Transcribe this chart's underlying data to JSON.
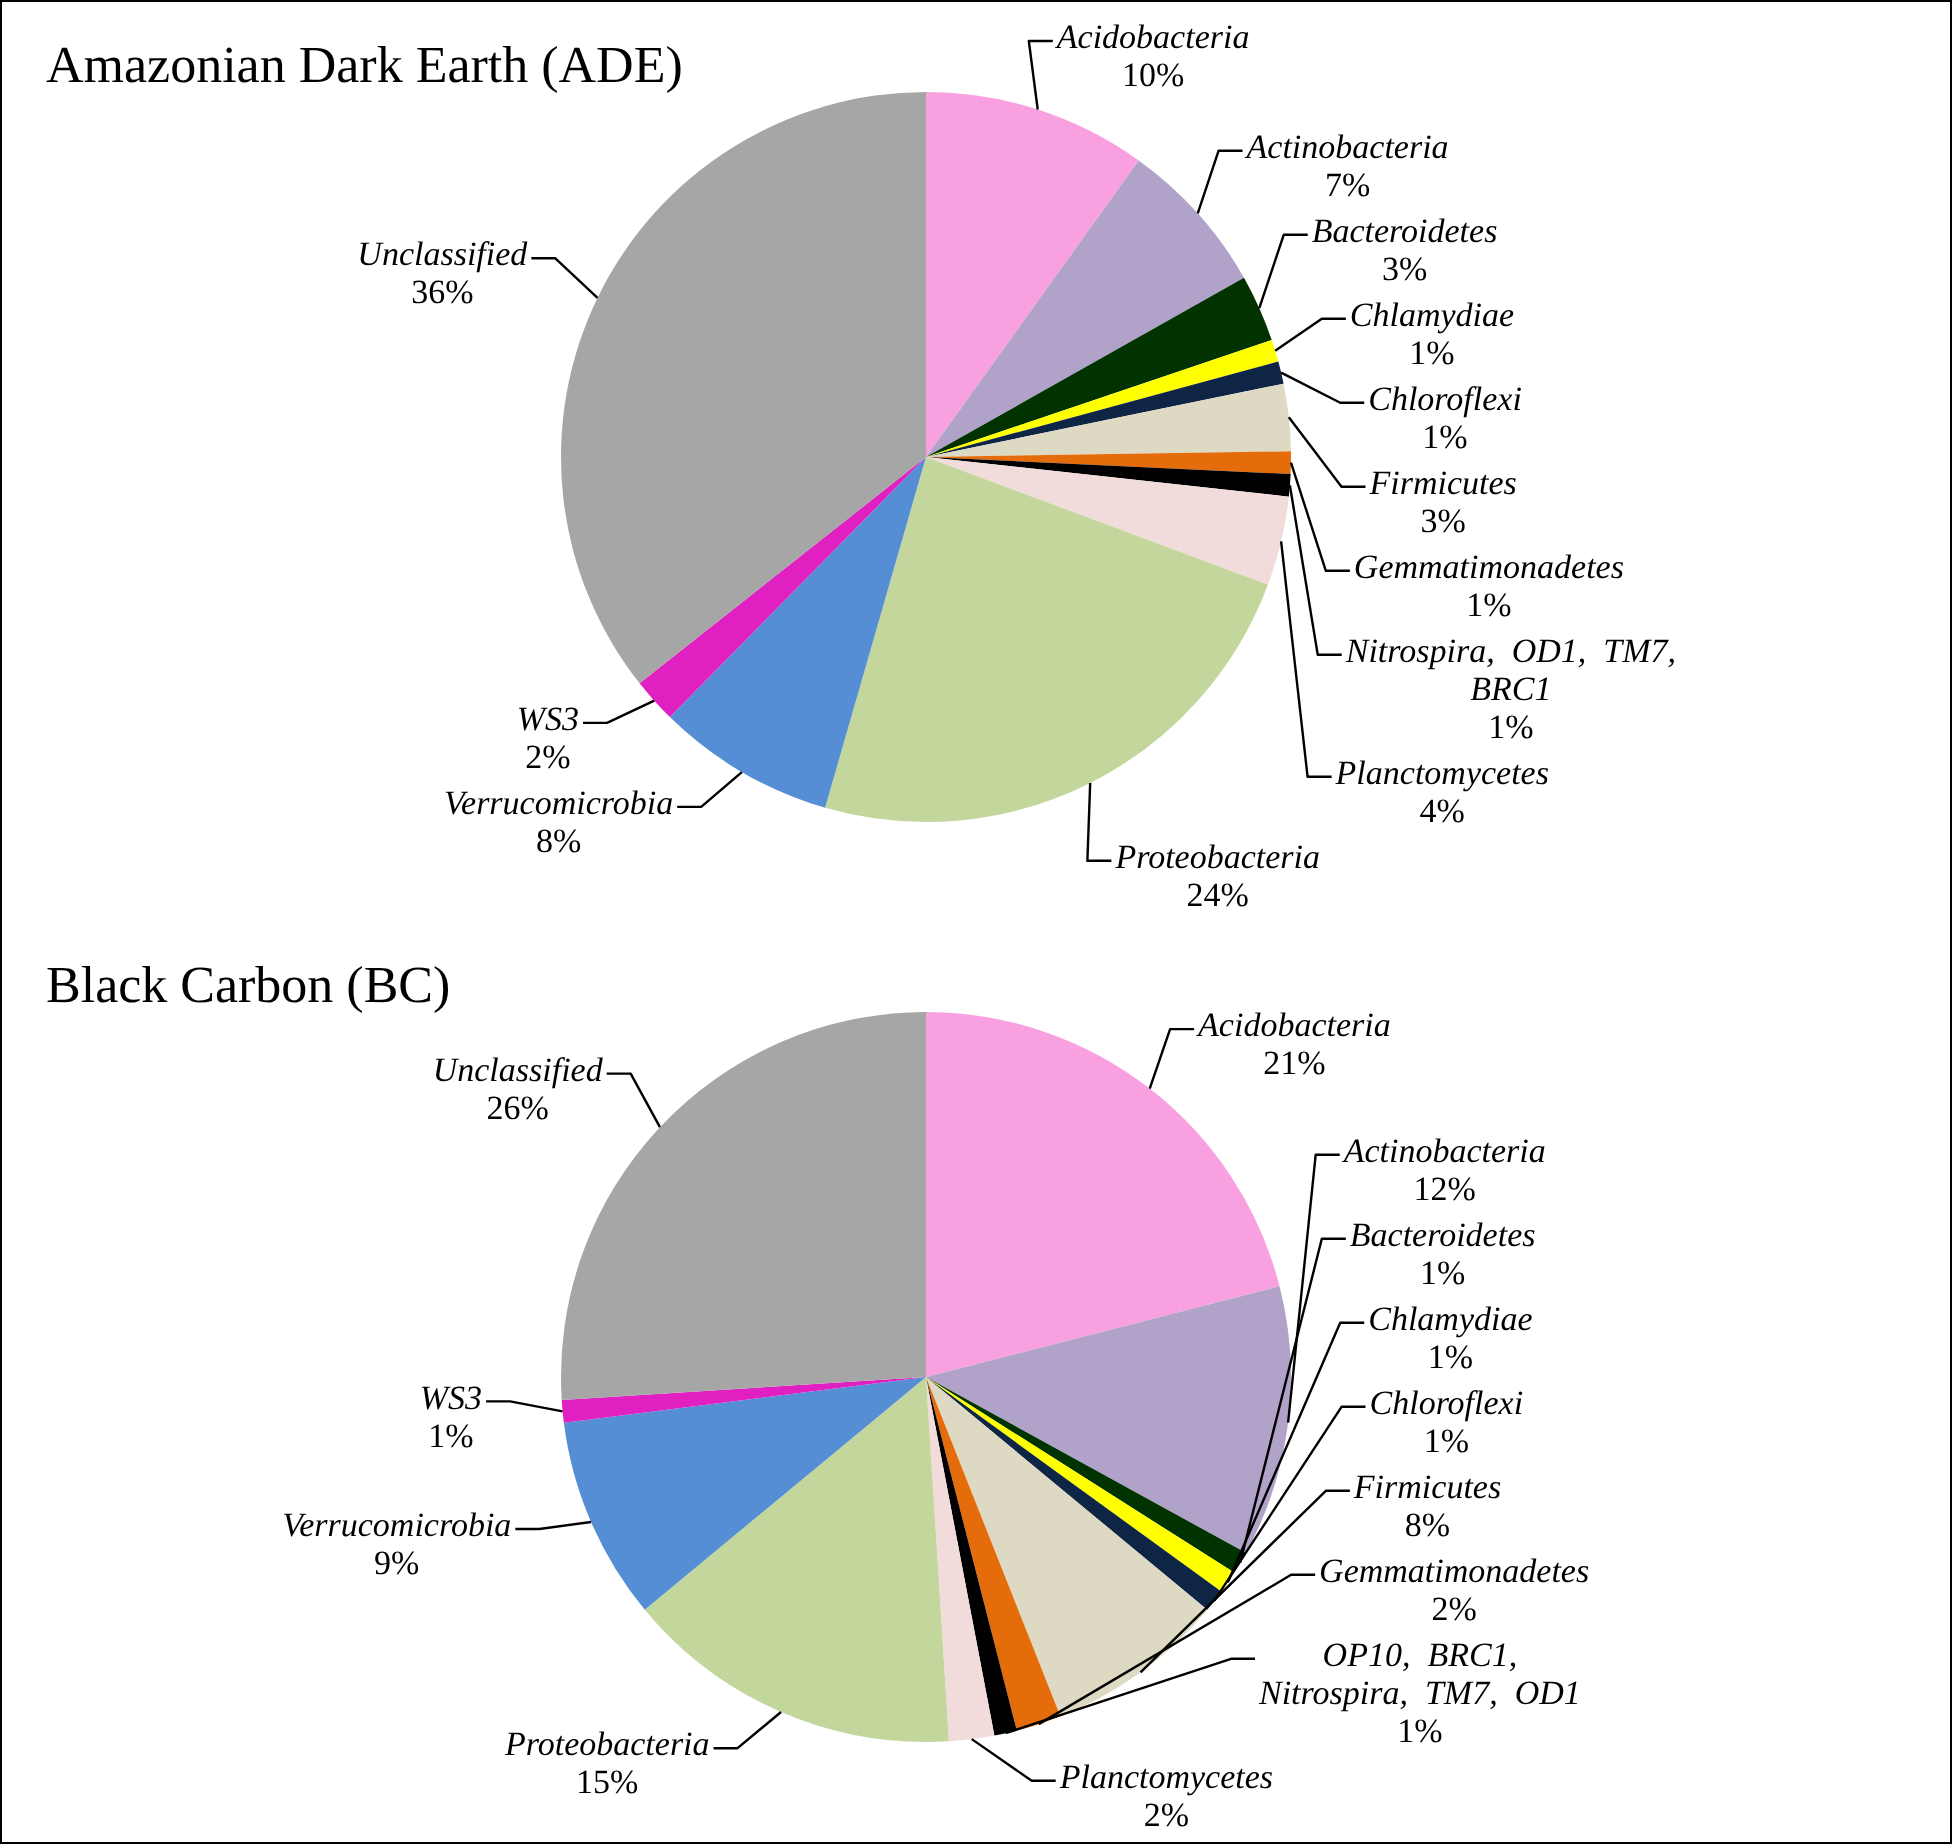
{
  "chart_data": [
    {
      "type": "pie",
      "title": "Amazonian Dark Earth (ADE)",
      "categories": [
        "Acidobacteria",
        "Actinobacteria",
        "Bacteroidetes",
        "Chlamydiae",
        "Chloroflexi",
        "Firmicutes",
        "Gemmatimonadetes",
        "Nitrospira, OD1, TM7, BRC1",
        "Planctomycetes",
        "Proteobacteria",
        "Verrucomicrobia",
        "WS3",
        "Unclassified"
      ],
      "values": [
        10,
        7,
        3,
        1,
        1,
        3,
        1,
        1,
        4,
        24,
        8,
        2,
        36
      ],
      "value_labels": [
        "10%",
        "7%",
        "3%",
        "1%",
        "1%",
        "3%",
        "1%",
        "1%",
        "4%",
        "24%",
        "8%",
        "2%",
        "36%"
      ],
      "colors": [
        "#f9a1e0",
        "#b0a2c8",
        "#003300",
        "#ffff00",
        "#0f2545",
        "#ddd9c3",
        "#e46c0a",
        "#000000",
        "#f2dcdb",
        "#c3d69b",
        "#558ed5",
        "#e020c0",
        "#a6a6a6"
      ]
    },
    {
      "type": "pie",
      "title": "Black Carbon (BC)",
      "categories": [
        "Acidobacteria",
        "Actinobacteria",
        "Bacteroidetes",
        "Chlamydiae",
        "Chloroflexi",
        "Firmicutes",
        "Gemmatimonadetes",
        "OP10, BRC1, Nitrospira, TM7, OD1",
        "Planctomycetes",
        "Proteobacteria",
        "Verrucomicrobia",
        "WS3",
        "Unclassified"
      ],
      "values": [
        21,
        12,
        1,
        1,
        1,
        8,
        2,
        1,
        2,
        15,
        9,
        1,
        26
      ],
      "value_labels": [
        "21%",
        "12%",
        "1%",
        "1%",
        "1%",
        "8%",
        "2%",
        "1%",
        "2%",
        "15%",
        "9%",
        "1%",
        "26%"
      ],
      "colors": [
        "#f9a1e0",
        "#b0a2c8",
        "#003300",
        "#ffff00",
        "#0f2545",
        "#ddd9c3",
        "#e46c0a",
        "#000000",
        "#f2dcdb",
        "#c3d69b",
        "#558ed5",
        "#e020c0",
        "#a6a6a6"
      ]
    }
  ]
}
